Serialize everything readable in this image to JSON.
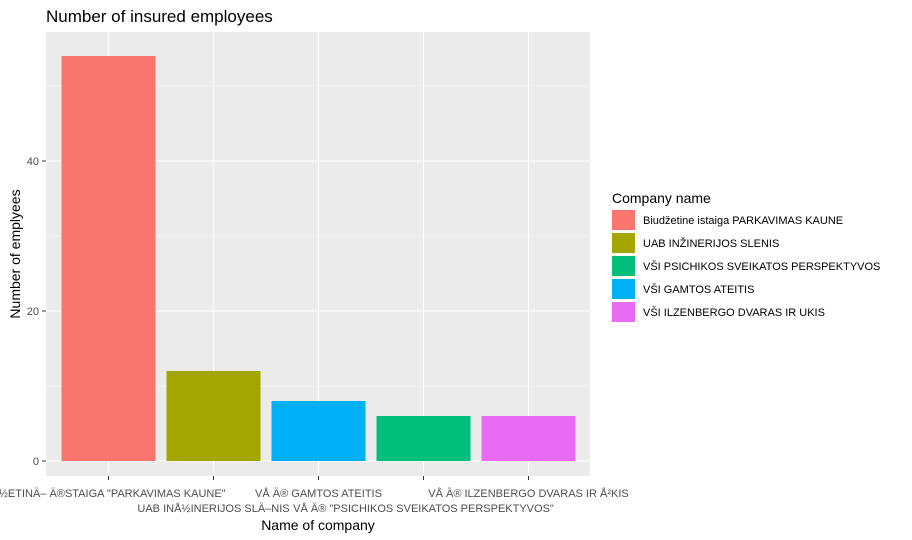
{
  "chart_data": {
    "type": "bar",
    "title": "Number of insured employees",
    "xlabel": "Name of company",
    "ylabel": "Number of emplyees",
    "ylim": [
      0,
      56.7
    ],
    "yticks": [
      0,
      20,
      40
    ],
    "grid": true,
    "legend_position": "right",
    "legend_title": "Company name",
    "categories": [
      "Å½ETINÄ– Ä®STAIGA \"PARKAVIMAS KAUNE\"",
      "UAB INÅ½INERIJOS SLÄ–NIS",
      "VÅ Ä® GAMTOS ATEITIS",
      "VÅ Ä® \"PSICHIKOS SVEIKATOS PERSPEKTYVOS\"",
      "VÅ Ä® ILZENBERGO DVARAS IR Å²KIS"
    ],
    "values": [
      54,
      12,
      8,
      6,
      6
    ],
    "bar_colors": [
      "#F8766D",
      "#A3A500",
      "#00B0F6",
      "#00BF7D",
      "#E76BF3"
    ],
    "legend": [
      {
        "label": "Biudžetine istaiga PARKAVIMAS KAUNE",
        "color": "#F8766D"
      },
      {
        "label": "UAB INŽINERIJOS SLENIS",
        "color": "#A3A500"
      },
      {
        "label": "VŠI PSICHIKOS SVEIKATOS PERSPEKTYVOS",
        "color": "#00BF7D"
      },
      {
        "label": "VŠI GAMTOS ATEITIS",
        "color": "#00B0F6"
      },
      {
        "label": "VŠI ILZENBERGO DVARAS IR UKIS",
        "color": "#E76BF3"
      }
    ],
    "panel_background": "#EBEBEB",
    "grid_color": "#FFFFFF"
  }
}
